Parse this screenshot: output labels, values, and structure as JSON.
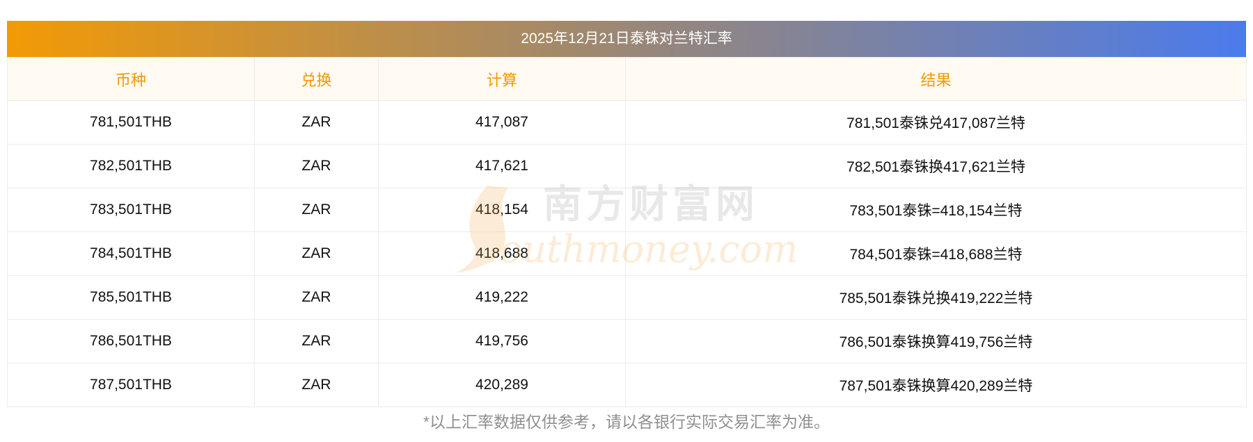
{
  "title": "2025年12月21日泰铢对兰特汇率",
  "columns": [
    "币种",
    "兑换",
    "计算",
    "结果"
  ],
  "rows": [
    {
      "currency": "781,501THB",
      "exchange": "ZAR",
      "calc": "417,087",
      "result": "781,501泰铢兑417,087兰特"
    },
    {
      "currency": "782,501THB",
      "exchange": "ZAR",
      "calc": "417,621",
      "result": "782,501泰铢换417,621兰特"
    },
    {
      "currency": "783,501THB",
      "exchange": "ZAR",
      "calc": "418,154",
      "result": "783,501泰铢=418,154兰特"
    },
    {
      "currency": "784,501THB",
      "exchange": "ZAR",
      "calc": "418,688",
      "result": "784,501泰铢=418,688兰特"
    },
    {
      "currency": "785,501THB",
      "exchange": "ZAR",
      "calc": "419,222",
      "result": "785,501泰铢兑换419,222兰特"
    },
    {
      "currency": "786,501THB",
      "exchange": "ZAR",
      "calc": "419,756",
      "result": "786,501泰铢换算419,756兰特"
    },
    {
      "currency": "787,501THB",
      "exchange": "ZAR",
      "calc": "420,289",
      "result": "787,501泰铢换算420,289兰特"
    }
  ],
  "watermark": {
    "cn": "南方财富网",
    "en": "southmoney.com"
  },
  "footer": "*以上汇率数据仅供参考，请以各银行实际交易汇率为准。",
  "colors": {
    "header_text": "#f39800",
    "title_gradient_start": "#f39a05",
    "title_gradient_end": "#4b7bec",
    "watermark": "#f6c27a"
  }
}
